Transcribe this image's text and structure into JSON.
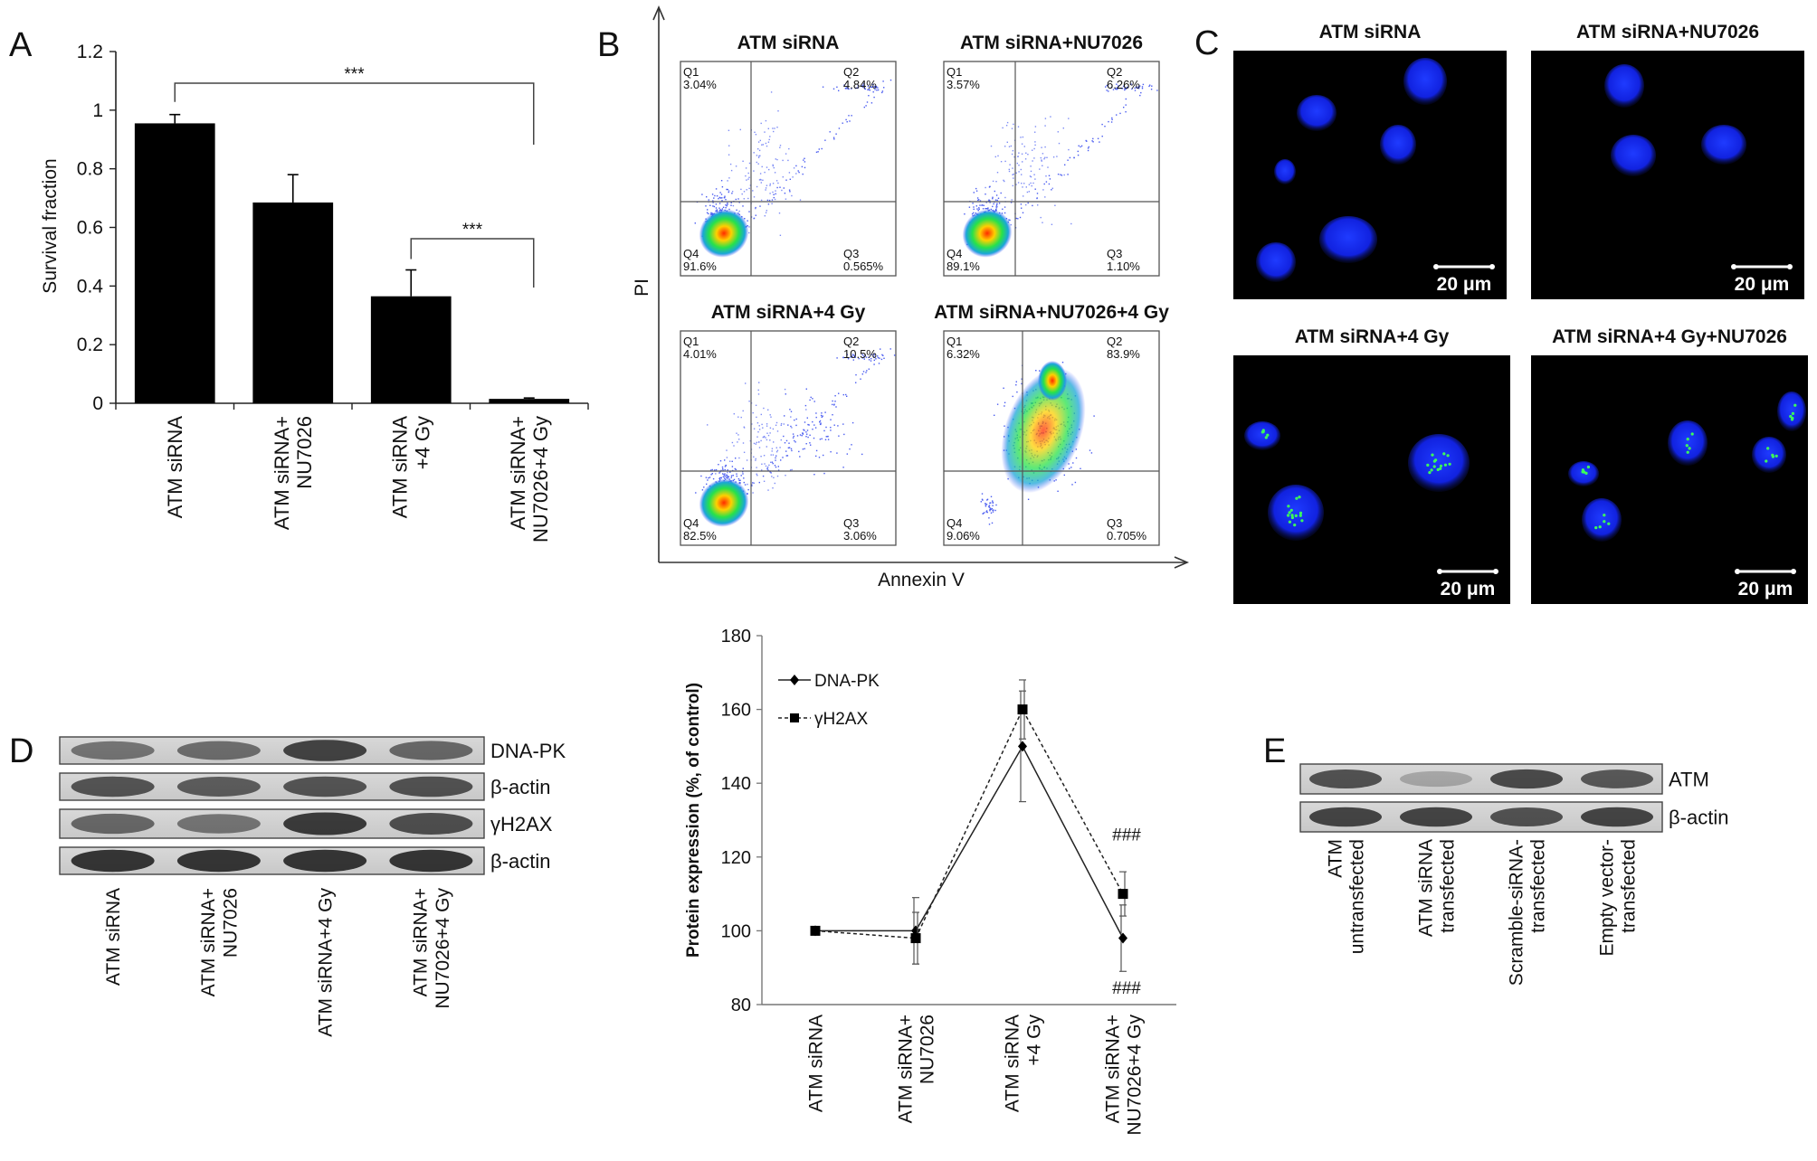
{
  "panels": {
    "A": {
      "letter": "A",
      "chart_data": {
        "type": "bar",
        "categories": [
          [
            "ATM siRNA"
          ],
          [
            "ATM siRNA+",
            "NU7026"
          ],
          [
            "ATM siRNA",
            "+4 Gy"
          ],
          [
            "ATM siRNA+",
            "NU7026+4 Gy"
          ]
        ],
        "values": [
          0.955,
          0.685,
          0.365,
          0.015
        ],
        "errors": [
          0.03,
          0.095,
          0.09,
          0.003
        ],
        "ylabel": "Survival fraction",
        "ylim": [
          0,
          1.2
        ],
        "yticks": [
          0,
          0.2,
          0.4,
          0.6,
          0.8,
          1,
          1.2
        ],
        "ytick_labels": [
          "0",
          "0.2",
          "0.4",
          "0.6",
          "0.8",
          "1",
          "1.2"
        ],
        "bar_color": "#000000",
        "significance": [
          {
            "from": 0,
            "to": 3,
            "label": "***"
          },
          {
            "from": 2,
            "to": 3,
            "label": "***"
          }
        ]
      }
    },
    "B": {
      "letter": "B",
      "y_axis_label": "PI",
      "x_axis_label": "Annexin V",
      "plots": [
        {
          "title": "ATM siRNA",
          "q1": "Q1",
          "q1v": "3.04%",
          "q2": "Q2",
          "q2v": "4.84%",
          "q3": "Q3",
          "q3v": "0.565%",
          "q4": "Q4",
          "q4v": "91.6%"
        },
        {
          "title": "ATM siRNA+NU7026",
          "q1": "Q1",
          "q1v": "3.57%",
          "q2": "Q2",
          "q2v": "6.26%",
          "q3": "Q3",
          "q3v": "1.10%",
          "q4": "Q4",
          "q4v": "89.1%"
        },
        {
          "title": "ATM siRNA+4 Gy",
          "q1": "Q1",
          "q1v": "4.01%",
          "q2": "Q2",
          "q2v": "10.5%",
          "q3": "Q3",
          "q3v": "3.06%",
          "q4": "Q4",
          "q4v": "82.5%"
        },
        {
          "title": "ATM siRNA+NU7026+4 Gy",
          "q1": "Q1",
          "q1v": "6.32%",
          "q2": "Q2",
          "q2v": "83.9%",
          "q3": "Q3",
          "q3v": "0.705%",
          "q4": "Q4",
          "q4v": "9.06%"
        }
      ]
    },
    "C": {
      "letter": "C",
      "images": [
        {
          "title": "ATM siRNA",
          "scale": "20 μm"
        },
        {
          "title": "ATM siRNA+NU7026",
          "scale": "20 μm"
        },
        {
          "title": "ATM siRNA+4 Gy",
          "scale": "20 μm"
        },
        {
          "title": "ATM siRNA+4 Gy+NU7026",
          "scale": "20 μm"
        }
      ]
    },
    "D": {
      "letter": "D",
      "blot_labels": [
        "DNA-PK",
        "β-actin",
        "γH2AX",
        "β-actin"
      ],
      "lane_labels": [
        [
          "ATM siRNA"
        ],
        [
          "ATM siRNA+",
          "NU7026"
        ],
        [
          "ATM siRNA+4 Gy"
        ],
        [
          "ATM siRNA+",
          "NU7026+4 Gy"
        ]
      ],
      "chart_data": {
        "type": "line",
        "categories": [
          [
            "ATM siRNA"
          ],
          [
            "ATM siRNA+",
            "NU7026"
          ],
          [
            "ATM siRNA",
            "+4 Gy"
          ],
          [
            "ATM siRNA+",
            "NU7026+4 Gy"
          ]
        ],
        "series": [
          {
            "name": "DNA-PK",
            "values": [
              100,
              100,
              150,
              98
            ],
            "errors": [
              0,
              9,
              15,
              9
            ],
            "marker": "diamond",
            "dash": "solid"
          },
          {
            "name": "γH2AX",
            "values": [
              100,
              98,
              160,
              110
            ],
            "errors": [
              0,
              7,
              8,
              6
            ],
            "marker": "square",
            "dash": "dashed"
          }
        ],
        "ylabel": "Protein expression (%, of control)",
        "ylim": [
          80,
          180
        ],
        "yticks": [
          80,
          100,
          120,
          140,
          160,
          180
        ],
        "ytick_labels": [
          "80",
          "100",
          "120",
          "140",
          "160",
          "180"
        ],
        "annotation_top": "###",
        "annotation_bottom": "###"
      }
    },
    "E": {
      "letter": "E",
      "blot_labels": [
        "ATM",
        "β-actin"
      ],
      "lane_labels": [
        [
          "ATM",
          "untransfected"
        ],
        [
          "ATM siRNA",
          "transfected"
        ],
        [
          "Scramble-siRNA-",
          "transfected"
        ],
        [
          "Empty vector-",
          "transfected"
        ]
      ]
    }
  }
}
